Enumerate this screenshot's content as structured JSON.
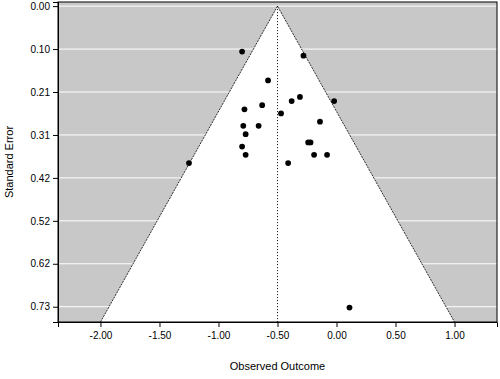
{
  "chart_data": {
    "type": "scatter",
    "x_label": "Observed Outcome",
    "y_label": "Standard Error",
    "x": [
      -0.8,
      -0.58,
      -0.28,
      -0.78,
      -0.63,
      -0.47,
      -0.38,
      -0.31,
      -0.02,
      -0.14,
      -0.79,
      -0.66,
      -0.77,
      -0.24,
      -0.22,
      -0.8,
      -0.77,
      -0.19,
      -0.08,
      -0.41,
      -1.25,
      0.11
    ],
    "values": [
      0.11,
      0.18,
      0.12,
      0.25,
      0.24,
      0.26,
      0.23,
      0.22,
      0.23,
      0.28,
      0.29,
      0.29,
      0.31,
      0.33,
      0.33,
      0.34,
      0.36,
      0.36,
      0.36,
      0.38,
      0.38,
      0.73
    ],
    "reference_line": -0.5,
    "funnel": {
      "x": [
        -2.0,
        -0.5,
        1.0
      ],
      "y": [
        0.765,
        0,
        0.765
      ]
    },
    "xlim": [
      -2.36,
      1.36
    ],
    "ylim": [
      -0.01,
      0.765
    ],
    "xticks": [
      {
        "value": -2,
        "label": "-2.00"
      },
      {
        "value": -1.5,
        "label": "-1.50"
      },
      {
        "value": -1,
        "label": "-1.00"
      },
      {
        "value": -0.5,
        "label": "-0.50"
      },
      {
        "value": 0,
        "label": "0.00"
      },
      {
        "value": 0.5,
        "label": "0.50"
      },
      {
        "value": 1,
        "label": "1.00"
      }
    ],
    "yticks": [
      {
        "value": 0,
        "label": "0.00"
      },
      {
        "value": 0.104,
        "label": "0.10"
      },
      {
        "value": 0.208,
        "label": "0.21"
      },
      {
        "value": 0.312,
        "label": "0.31"
      },
      {
        "value": 0.416,
        "label": "0.42"
      },
      {
        "value": 0.52,
        "label": "0.52"
      },
      {
        "value": 0.624,
        "label": "0.62"
      },
      {
        "value": 0.728,
        "label": "0.73"
      }
    ],
    "grid": true,
    "marker": "circle",
    "color": "#000000"
  }
}
